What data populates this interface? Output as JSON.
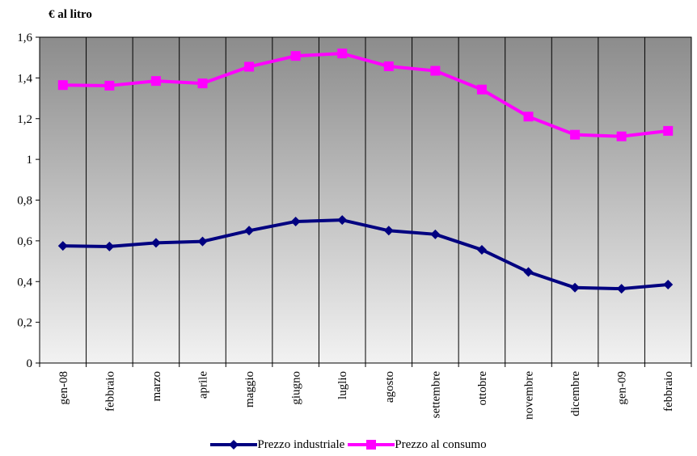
{
  "chart_data": {
    "type": "line",
    "unit_label": "€ al litro",
    "categories": [
      "gen-08",
      "febbraio",
      "marzo",
      "aprile",
      "maggio",
      "giugno",
      "luglio",
      "agosto",
      "settembre",
      "ottobre",
      "novembre",
      "dicembre",
      "gen-09",
      "febbraio"
    ],
    "y_ticks": [
      "0",
      "0,2",
      "0,4",
      "0,6",
      "0,8",
      "1",
      "1,2",
      "1,4",
      "1,6"
    ],
    "ylim": [
      0,
      1.6
    ],
    "grid": "vertical",
    "legend_position": "bottom",
    "series": [
      {
        "name": "Prezzo industriale",
        "color": "#000080",
        "marker": "diamond",
        "values": [
          0.575,
          0.572,
          0.59,
          0.597,
          0.65,
          0.695,
          0.702,
          0.65,
          0.632,
          0.556,
          0.447,
          0.37,
          0.365,
          0.385
        ]
      },
      {
        "name": "Prezzo al consumo",
        "color": "#FF00FF",
        "marker": "square",
        "values": [
          1.365,
          1.362,
          1.385,
          1.373,
          1.455,
          1.508,
          1.52,
          1.457,
          1.435,
          1.343,
          1.21,
          1.121,
          1.113,
          1.14
        ]
      }
    ]
  }
}
